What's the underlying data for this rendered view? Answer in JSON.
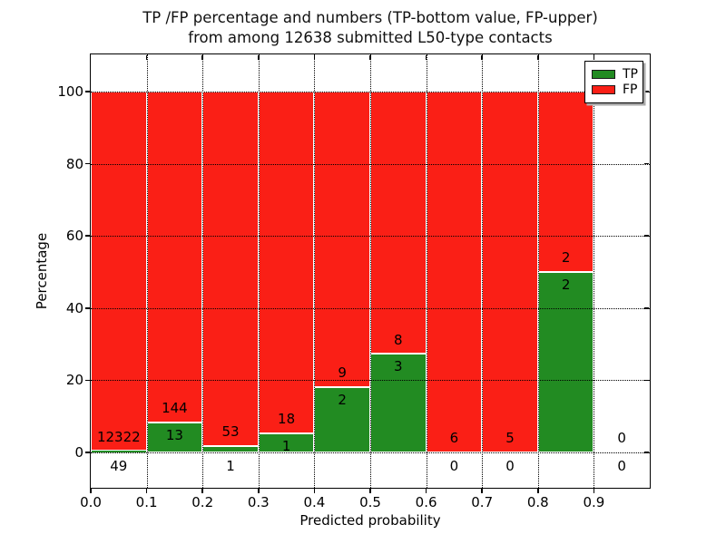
{
  "figure": {
    "title_line1": "TP /FP percentage and numbers (TP-bottom value, FP-upper)",
    "title_line2": "from among 12638 submitted L50-type contacts"
  },
  "axes": {
    "x_label": "Predicted probability",
    "y_label": "Percentage",
    "x_tick_values": [
      0.0,
      0.1,
      0.2,
      0.3,
      0.4,
      0.5,
      0.6,
      0.7,
      0.8,
      0.9
    ],
    "x_tick_labels": [
      "0.0",
      "0.1",
      "0.2",
      "0.3",
      "0.4",
      "0.5",
      "0.6",
      "0.7",
      "0.8",
      "0.9"
    ],
    "y_tick_values": [
      0,
      20,
      40,
      60,
      80,
      100
    ],
    "y_tick_labels": [
      "0",
      "20",
      "40",
      "60",
      "80",
      "100"
    ]
  },
  "legend": {
    "items": [
      {
        "label": "TP",
        "color": "#228b22"
      },
      {
        "label": "FP",
        "color": "#fa1f16"
      }
    ]
  },
  "colors": {
    "tp": "#228b22",
    "fp": "#fa1f16",
    "bar_edge": "#ffffff",
    "grid": "#000000",
    "background": "#ffffff"
  },
  "chart_data": {
    "type": "bar",
    "stacked": true,
    "normalized_per_bin_to_100_percent": true,
    "title": "TP /FP percentage and numbers (TP-bottom value, FP-upper) from among 12638 submitted L50-type contacts",
    "xlabel": "Predicted probability",
    "ylabel": "Percentage",
    "xlim": [
      0.0,
      1.0
    ],
    "ylim": [
      -10,
      110
    ],
    "grid": "dotted, drawn above bars",
    "legend_position": "upper right",
    "bin_width": 0.1,
    "bin_starts": [
      0.0,
      0.1,
      0.2,
      0.3,
      0.4,
      0.5,
      0.6,
      0.7,
      0.8,
      0.9
    ],
    "series": [
      {
        "name": "TP",
        "color": "#228b22",
        "counts": [
          49,
          13,
          1,
          1,
          2,
          3,
          0,
          0,
          2,
          0
        ]
      },
      {
        "name": "FP",
        "color": "#fa1f16",
        "counts": [
          12322,
          144,
          53,
          18,
          9,
          8,
          6,
          5,
          2,
          0
        ]
      }
    ],
    "tp_percent_of_bin": [
      0.4,
      8.3,
      1.9,
      5.3,
      18.2,
      27.3,
      0,
      0,
      50,
      0
    ],
    "total_contacts": 12638
  }
}
